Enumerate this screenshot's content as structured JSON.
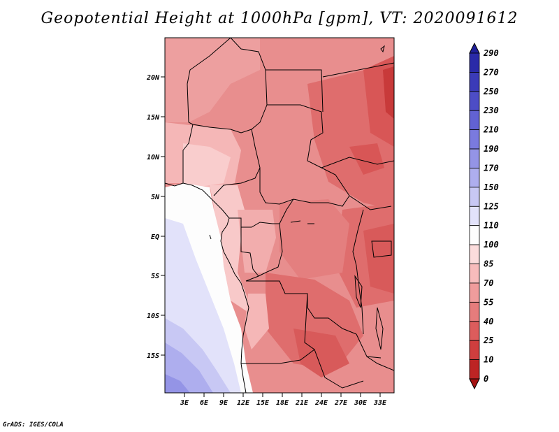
{
  "title": "Geopotential Height at 1000hPa [gpm], VT: 2020091612",
  "credit": "GrADS: IGES/COLA",
  "map": {
    "lat_ticks": [
      "20N",
      "15N",
      "10N",
      "5N",
      "EQ",
      "5S",
      "10S",
      "15S"
    ],
    "lon_ticks": [
      "3E",
      "6E",
      "9E",
      "12E",
      "15E",
      "18E",
      "21E",
      "24E",
      "27E",
      "30E",
      "33E"
    ],
    "lon_range": [
      0,
      35
    ],
    "lat_range": [
      -19.5,
      24.5
    ],
    "variable": "Geopotential Height",
    "level": "1000hPa",
    "units": "gpm"
  },
  "colorbar": {
    "levels": [
      "290",
      "270",
      "250",
      "230",
      "210",
      "190",
      "170",
      "150",
      "125",
      "110",
      "100",
      "85",
      "70",
      "55",
      "40",
      "25",
      "10",
      "0"
    ],
    "colors": [
      "#1f1f9a",
      "#2a2aa8",
      "#3b3bb8",
      "#4d4dc6",
      "#6262d3",
      "#7a7ade",
      "#9494e6",
      "#aeaeee",
      "#c8c8f4",
      "#e2e2fa",
      "#fdfdfd",
      "#fbdcdc",
      "#f7bcbc",
      "#f09c9c",
      "#e67c7c",
      "#dc5c5c",
      "#cf3e3e",
      "#bd2424",
      "#a51212"
    ]
  }
}
